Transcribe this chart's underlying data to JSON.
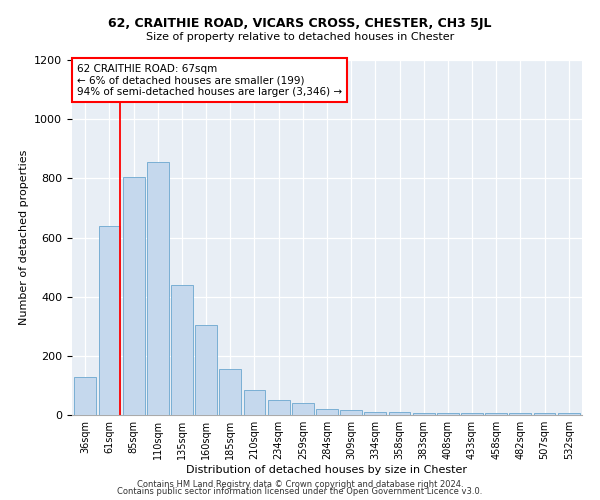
{
  "title1": "62, CRAITHIE ROAD, VICARS CROSS, CHESTER, CH3 5JL",
  "title2": "Size of property relative to detached houses in Chester",
  "xlabel": "Distribution of detached houses by size in Chester",
  "ylabel": "Number of detached properties",
  "categories": [
    "36sqm",
    "61sqm",
    "85sqm",
    "110sqm",
    "135sqm",
    "160sqm",
    "185sqm",
    "210sqm",
    "234sqm",
    "259sqm",
    "284sqm",
    "309sqm",
    "334sqm",
    "358sqm",
    "383sqm",
    "408sqm",
    "433sqm",
    "458sqm",
    "482sqm",
    "507sqm",
    "532sqm"
  ],
  "values": [
    128,
    640,
    805,
    855,
    440,
    305,
    155,
    85,
    50,
    40,
    20,
    18,
    10,
    10,
    8,
    8,
    8,
    8,
    8,
    8,
    8
  ],
  "bar_color": "#c5d8ed",
  "bar_edge_color": "#7aafd4",
  "annotation_text": "62 CRAITHIE ROAD: 67sqm\n← 6% of detached houses are smaller (199)\n94% of semi-detached houses are larger (3,346) →",
  "annotation_box_color": "white",
  "annotation_box_edge_color": "red",
  "vline_color": "red",
  "ylim": [
    0,
    1200
  ],
  "yticks": [
    0,
    200,
    400,
    600,
    800,
    1000,
    1200
  ],
  "background_color": "#e8eef5",
  "footer1": "Contains HM Land Registry data © Crown copyright and database right 2024.",
  "footer2": "Contains public sector information licensed under the Open Government Licence v3.0."
}
